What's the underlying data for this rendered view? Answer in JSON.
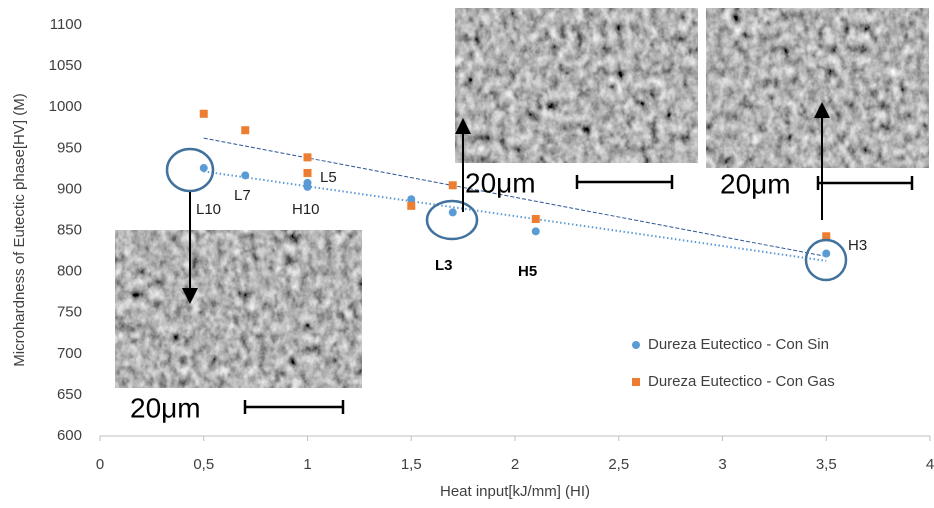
{
  "chart_data": {
    "type": "scatter",
    "y_label": "Microhardness of Eutectic phase[HV] (M)",
    "x_label": "Heat input[kJ/mm]  (HI)",
    "xlim": [
      0,
      4
    ],
    "xticks": [
      0,
      {
        "value": 0.5,
        "label": "0,5"
      },
      1,
      {
        "value": 1.5,
        "label": "1,5"
      },
      2,
      {
        "value": 2.5,
        "label": "2,5"
      },
      3,
      {
        "value": 3.5,
        "label": "3,5"
      },
      4
    ],
    "ylim": [
      600,
      1100
    ],
    "yticks": [
      600,
      650,
      700,
      750,
      800,
      850,
      900,
      950,
      1000,
      1050,
      1100
    ],
    "trendline": true,
    "series": [
      {
        "name": "Dureza Eutectico - Con Sin",
        "color": "#5b9bd5",
        "marker": "circle",
        "x": [
          0.5,
          0.7,
          1,
          1,
          1.5,
          1.7,
          2.1,
          3.5
        ],
        "values": [
          926,
          917,
          908,
          903,
          888,
          872,
          849,
          822
        ]
      },
      {
        "name": "Dureza Eutectico - Con Gas",
        "color": "#ed7d31",
        "marker": "square",
        "x": [
          0.5,
          0.7,
          1,
          1,
          1.5,
          1.7,
          2.1,
          3.5
        ],
        "values": [
          992,
          972,
          939,
          920,
          880,
          905,
          864,
          843
        ]
      }
    ],
    "annotations": [
      "L10",
      "L7",
      "H10",
      "L5",
      "L3",
      "H5",
      "H3"
    ],
    "scale_labels": [
      "20μm",
      "20μm",
      "20μm"
    ]
  }
}
